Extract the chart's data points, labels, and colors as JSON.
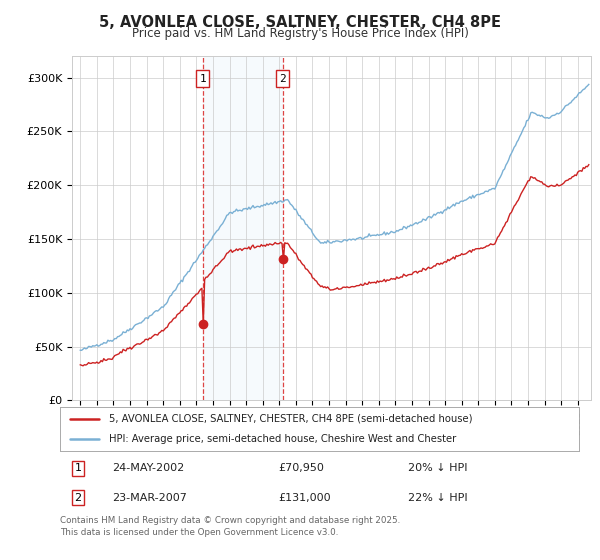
{
  "title": "5, AVONLEA CLOSE, SALTNEY, CHESTER, CH4 8PE",
  "subtitle": "Price paid vs. HM Land Registry's House Price Index (HPI)",
  "legend_line1": "5, AVONLEA CLOSE, SALTNEY, CHESTER, CH4 8PE (semi-detached house)",
  "legend_line2": "HPI: Average price, semi-detached house, Cheshire West and Chester",
  "footer": "Contains HM Land Registry data © Crown copyright and database right 2025.\nThis data is licensed under the Open Government Licence v3.0.",
  "sale1_date": "24-MAY-2002",
  "sale1_price": "£70,950",
  "sale1_hpi": "20% ↓ HPI",
  "sale2_date": "23-MAR-2007",
  "sale2_price": "£131,000",
  "sale2_hpi": "22% ↓ HPI",
  "sale1_year": 2002.38,
  "sale1_value": 70950,
  "sale2_year": 2007.22,
  "sale2_value": 131000,
  "hpi_color": "#7ab0d4",
  "price_color": "#cc2222",
  "sale_marker_color": "#cc2222",
  "shading_color": "#d6e8f5",
  "vline_color": "#dd4444",
  "background_color": "#ffffff",
  "grid_color": "#cccccc",
  "yticks": [
    0,
    50000,
    100000,
    150000,
    200000,
    250000,
    300000
  ],
  "ylabels": [
    "£0",
    "£50K",
    "£100K",
    "£150K",
    "£200K",
    "£250K",
    "£300K"
  ],
  "ylim": [
    0,
    320000
  ],
  "xlim_start": 1994.5,
  "xlim_end": 2025.8
}
